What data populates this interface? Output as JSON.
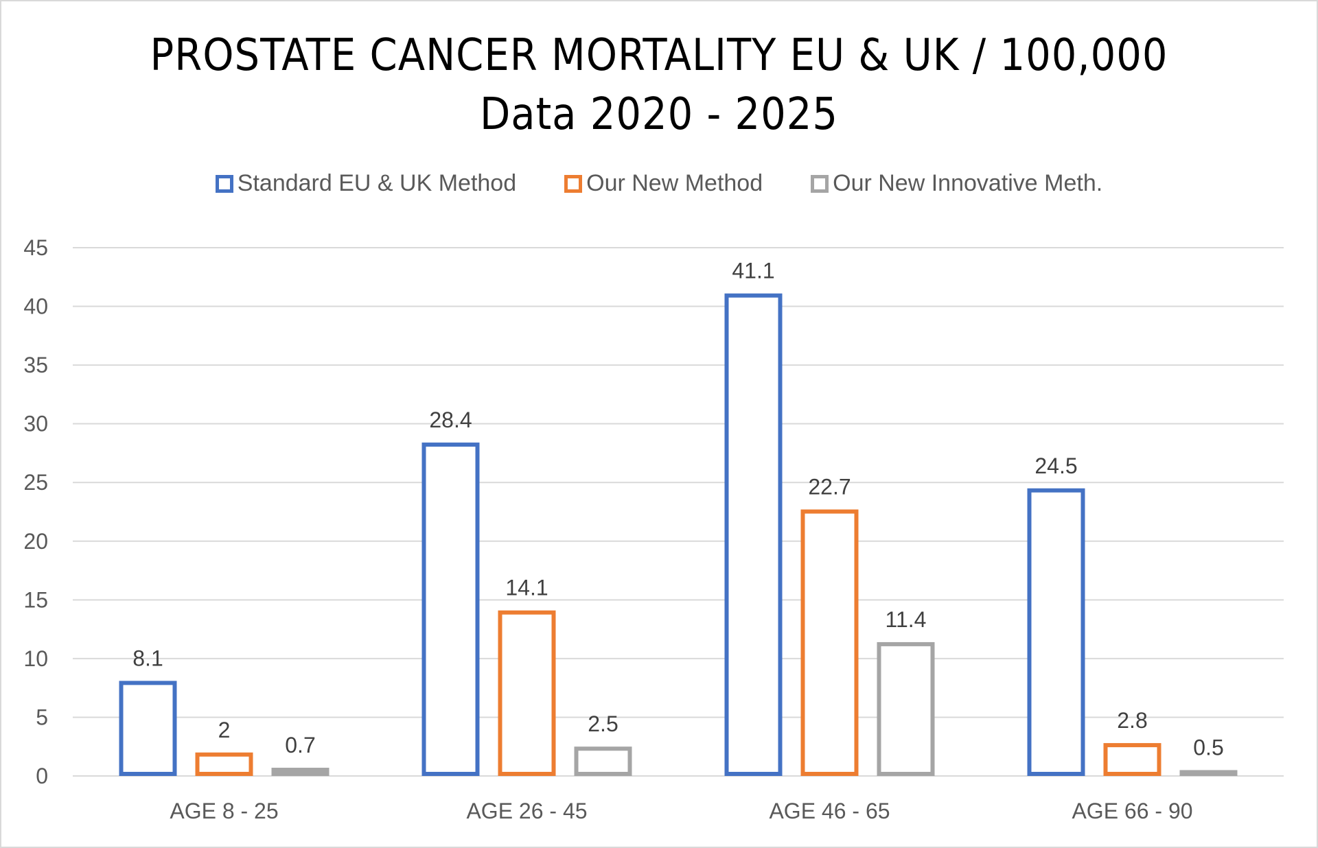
{
  "chart_data": {
    "type": "bar",
    "title": "PROSTATE CANCER MORTALITY EU & UK / 100,000",
    "subtitle": "Data 2020 - 2025",
    "categories": [
      "AGE 8 - 25",
      "AGE 26 - 45",
      "AGE 46 - 65",
      "AGE 66 - 90"
    ],
    "series": [
      {
        "name": "Standard EU & UK Method",
        "color": "#4472C4",
        "values": [
          8.1,
          28.4,
          41.1,
          24.5
        ],
        "labels": [
          "8.1",
          "28.4",
          "41.1",
          "24.5"
        ]
      },
      {
        "name": "Our New Method",
        "color": "#ED7D31",
        "values": [
          2,
          14.1,
          22.7,
          2.8
        ],
        "labels": [
          "2",
          "14.1",
          "22.7",
          "2.8"
        ]
      },
      {
        "name": "Our New Innovative Meth.",
        "color": "#A5A5A5",
        "values": [
          0.7,
          2.5,
          11.4,
          0.5
        ],
        "labels": [
          "0.7",
          "2.5",
          "11.4",
          "0.5"
        ]
      }
    ],
    "ylim": [
      0,
      45
    ],
    "yticks": [
      "0",
      "5",
      "10",
      "15",
      "20",
      "25",
      "30",
      "35",
      "40",
      "45"
    ],
    "ytick_values": [
      0,
      5,
      10,
      15,
      20,
      25,
      30,
      35,
      40,
      45
    ],
    "xlabel": "",
    "ylabel": "",
    "grid": true,
    "legend_position": "top",
    "bar_style": "outlined",
    "gridline_color": "#D9D9D9"
  }
}
